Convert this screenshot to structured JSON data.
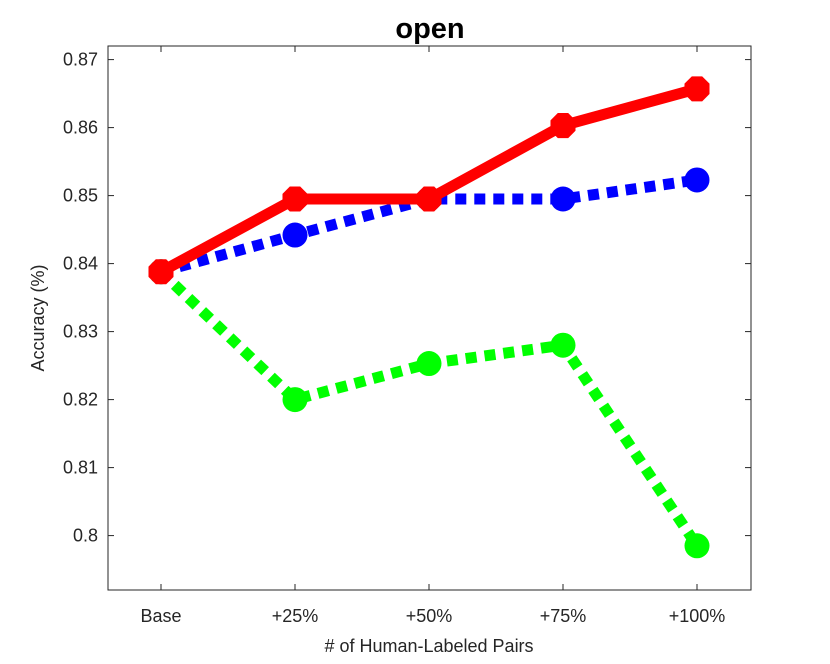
{
  "chart_data": {
    "type": "line",
    "title": "open",
    "xlabel": "# of Human-Labeled Pairs",
    "ylabel": "Accuracy (%)",
    "categories": [
      "Base",
      "+25%",
      "+50%",
      "+75%",
      "+100%"
    ],
    "ylim": [
      0.792,
      0.872
    ],
    "yticks": [
      0.8,
      0.81,
      0.82,
      0.83,
      0.84,
      0.85,
      0.86,
      0.87
    ],
    "ytick_labels": [
      "0.8",
      "0.81",
      "0.82",
      "0.83",
      "0.84",
      "0.85",
      "0.86",
      "0.87"
    ],
    "grid": false,
    "legend": "none",
    "series": [
      {
        "values": [
          0.8388,
          0.8442,
          0.8495,
          0.8495,
          0.8523
        ],
        "color": "#0000ff",
        "style": "dotted",
        "marker": "circle"
      },
      {
        "values": [
          0.8388,
          0.82,
          0.8253,
          0.828,
          0.7985
        ],
        "color": "#00ff00",
        "style": "dotted",
        "marker": "circle"
      },
      {
        "values": [
          0.8388,
          0.8495,
          0.8495,
          0.8603,
          0.8657
        ],
        "color": "#ff0000",
        "style": "solid",
        "marker": "octagon"
      }
    ]
  }
}
